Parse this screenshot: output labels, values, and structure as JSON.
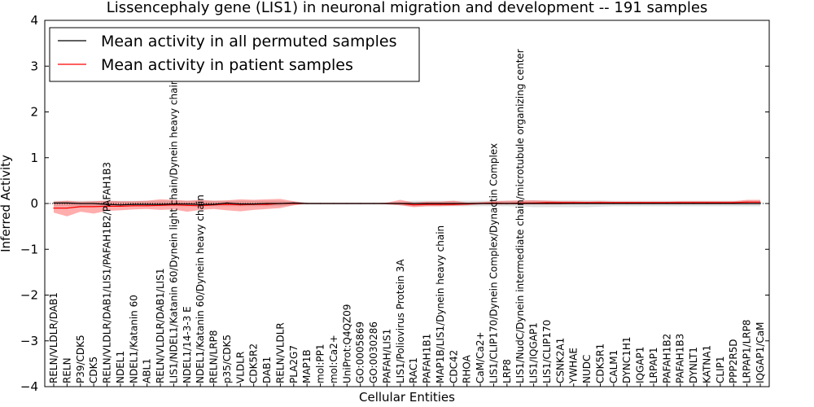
{
  "chart_data": {
    "type": "line",
    "title": "Lissencephaly gene (LIS1) in neuronal migration and development -- 191 samples",
    "xlabel": "Cellular Entities",
    "ylabel": "Inferred Activity",
    "ylim": [
      -4,
      4
    ],
    "yticks": [
      -4,
      -3,
      -2,
      -1,
      0,
      1,
      2,
      3,
      4
    ],
    "ytick_labels": [
      "−4",
      "−3",
      "−2",
      "−1",
      "0",
      "1",
      "2",
      "3",
      "4"
    ],
    "legend_position": "top-left",
    "categories": [
      "RELN/VLDLR/DAB1",
      "RELN",
      "P39/CDK5",
      "CDK5",
      "RELN/VLDLR/DAB1/LIS1/PAFAH1B2/PAFAH1B3",
      "NDEL1",
      "NDEL1/Katanin 60",
      "ABL1",
      "RELN/VLDLR/DAB1/LIS1",
      "LIS1/NDEL1/Katanin 60/Dynein light chain/Dynein heavy chain",
      "NDEL1/14-3-3 E",
      "NDEL1/Katanin 60/Dynein heavy chain",
      "RELN/LRP8",
      "p35/CDK5",
      "VLDLR",
      "CDK5R2",
      "DAB1",
      "RELN/VLDLR",
      "PLA2G7",
      "MAP1B",
      "mol:PP1",
      "mol:Ca2+",
      "UniProt:Q4QZ09",
      "GO:0005869",
      "GO:0030286",
      "PAFAH/LIS1",
      "LIS1/Poliovirus Protein 3A",
      "RAC1",
      "PAFAH1B1",
      "MAP1B/LIS1/Dynein heavy chain",
      "CDC42",
      "RHOA",
      "CaM/Ca2+",
      "LIS1/CLIP170/Dynein Complex/Dynactin Complex",
      "LRP8",
      "LIS1/NudC/Dynein intermediate chain/microtubule organizing center",
      "LIS1/IQGAP1",
      "LIS1/CLIP170",
      "CSNK2A1",
      "YWHAE",
      "NUDC",
      "CDK5R1",
      "CALM1",
      "DYNC1H1",
      "IQGAP1",
      "LRPAP1",
      "PAFAH1B2",
      "PAFAH1B3",
      "DYNLT1",
      "KATNA1",
      "CLIP1",
      "PPP2R5D",
      "LRPAP1/LRP8",
      "IQGAP1/CaM"
    ],
    "series": [
      {
        "name": "Mean activity in all permuted samples",
        "color": "#000000",
        "values": [
          0.01,
          0.01,
          0.0,
          0.0,
          -0.02,
          -0.03,
          -0.02,
          -0.02,
          -0.02,
          -0.01,
          -0.01,
          -0.02,
          -0.02,
          0.01,
          -0.01,
          -0.01,
          0.0,
          0.0,
          0.01,
          0.0,
          0.0,
          0.0,
          0.0,
          0.0,
          0.0,
          0.0,
          0.0,
          0.0,
          0.0,
          0.0,
          0.0,
          0.0,
          0.0,
          0.0,
          0.0,
          0.0,
          0.0,
          0.0,
          0.0,
          0.0,
          0.0,
          0.0,
          0.0,
          0.0,
          0.0,
          0.0,
          0.0,
          0.0,
          0.0,
          0.0,
          0.0,
          0.0,
          0.0,
          0.0
        ],
        "band_low": [
          -0.06,
          -0.06,
          -0.06,
          -0.06,
          -0.06,
          -0.06,
          -0.06,
          -0.06,
          -0.06,
          -0.06,
          -0.06,
          -0.06,
          -0.06,
          -0.06,
          -0.06,
          -0.06,
          -0.06,
          -0.06,
          -0.04,
          -0.02,
          -0.02,
          -0.02,
          -0.02,
          -0.02,
          -0.02,
          -0.02,
          -0.04,
          -0.06,
          -0.06,
          -0.06,
          -0.06,
          -0.06,
          -0.06,
          -0.06,
          -0.06,
          -0.06,
          -0.08,
          -0.08,
          -0.08,
          -0.08,
          -0.08,
          -0.07,
          -0.06,
          -0.06,
          -0.06,
          -0.06,
          -0.06,
          -0.06,
          -0.06,
          -0.06,
          -0.06,
          -0.06,
          -0.06,
          -0.06
        ],
        "band_high": [
          0.06,
          0.06,
          0.06,
          0.06,
          0.06,
          0.06,
          0.06,
          0.06,
          0.06,
          0.06,
          0.06,
          0.06,
          0.06,
          0.06,
          0.06,
          0.06,
          0.06,
          0.06,
          0.04,
          0.02,
          0.02,
          0.02,
          0.02,
          0.02,
          0.02,
          0.02,
          0.04,
          0.06,
          0.06,
          0.06,
          0.06,
          0.06,
          0.06,
          0.06,
          0.06,
          0.06,
          0.07,
          0.07,
          0.07,
          0.07,
          0.07,
          0.07,
          0.06,
          0.06,
          0.06,
          0.06,
          0.06,
          0.06,
          0.06,
          0.06,
          0.06,
          0.06,
          0.06,
          0.06
        ]
      },
      {
        "name": "Mean activity in patient samples",
        "color": "#ff0000",
        "values": [
          -0.1,
          -0.1,
          -0.07,
          -0.07,
          -0.06,
          -0.06,
          -0.05,
          -0.05,
          -0.04,
          -0.03,
          -0.04,
          -0.05,
          -0.03,
          -0.02,
          -0.03,
          -0.02,
          -0.02,
          0.0,
          0.0,
          0.0,
          0.0,
          0.0,
          0.0,
          0.0,
          0.0,
          0.0,
          0.0,
          -0.03,
          -0.02,
          -0.02,
          -0.02,
          -0.01,
          0.0,
          0.01,
          0.0,
          0.01,
          0.01,
          0.02,
          0.02,
          0.02,
          0.02,
          0.02,
          0.02,
          0.02,
          0.02,
          0.02,
          0.02,
          0.02,
          0.02,
          0.02,
          0.02,
          0.02,
          0.03,
          0.03
        ],
        "band_low": [
          -0.2,
          -0.28,
          -0.18,
          -0.22,
          -0.16,
          -0.15,
          -0.13,
          -0.12,
          -0.14,
          -0.13,
          -0.18,
          -0.14,
          -0.12,
          -0.15,
          -0.17,
          -0.14,
          -0.12,
          -0.1,
          -0.04,
          0.0,
          0.0,
          0.0,
          0.0,
          0.0,
          0.0,
          -0.02,
          -0.04,
          -0.08,
          -0.06,
          -0.06,
          -0.05,
          -0.04,
          -0.02,
          -0.02,
          -0.02,
          -0.02,
          -0.02,
          -0.02,
          -0.02,
          -0.01,
          -0.01,
          -0.01,
          -0.01,
          -0.01,
          -0.01,
          -0.01,
          -0.01,
          -0.01,
          -0.01,
          -0.01,
          -0.01,
          -0.01,
          -0.01,
          -0.01
        ],
        "band_high": [
          0.04,
          0.06,
          0.04,
          0.05,
          0.06,
          0.05,
          0.05,
          0.06,
          0.09,
          0.08,
          0.06,
          0.08,
          0.06,
          0.07,
          0.09,
          0.08,
          0.09,
          0.1,
          0.05,
          0.01,
          0.0,
          0.0,
          0.0,
          0.0,
          0.0,
          0.02,
          0.08,
          0.02,
          0.04,
          0.04,
          0.06,
          0.02,
          0.03,
          0.05,
          0.06,
          0.07,
          0.07,
          0.06,
          0.05,
          0.05,
          0.04,
          0.05,
          0.04,
          0.04,
          0.04,
          0.04,
          0.04,
          0.05,
          0.05,
          0.05,
          0.05,
          0.05,
          0.08,
          0.08
        ]
      }
    ]
  }
}
